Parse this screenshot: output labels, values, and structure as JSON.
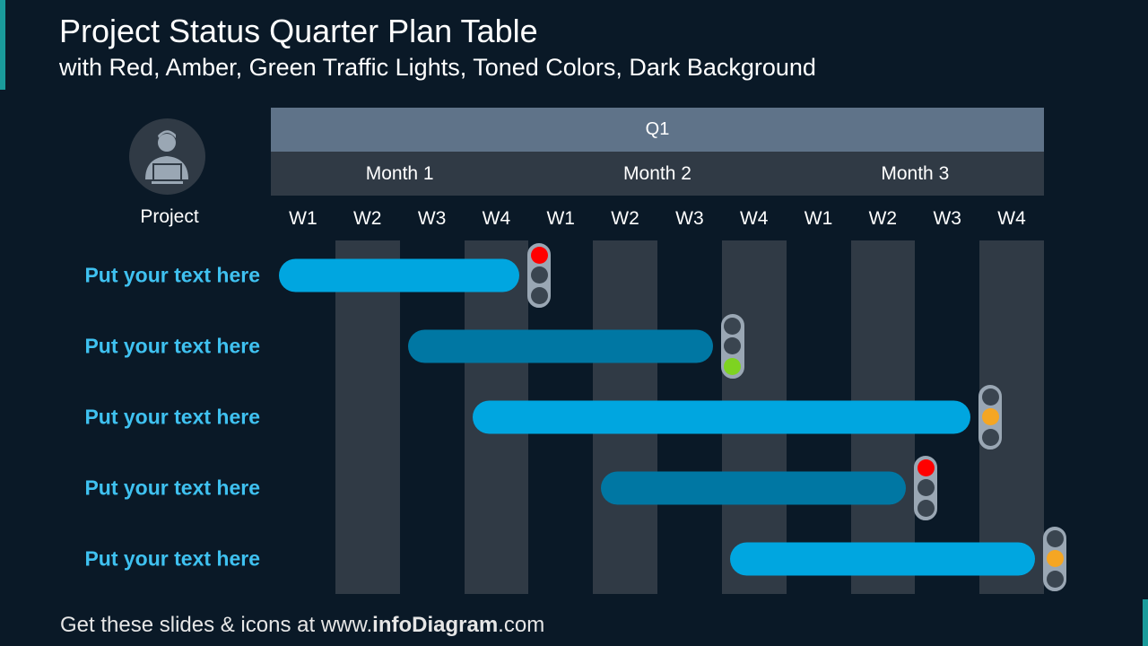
{
  "title": "Project Status Quarter Plan Table",
  "subtitle": "with Red, Amber, Green Traffic Lights, Toned Colors, Dark Background",
  "quarter": "Q1",
  "months": [
    "Month 1",
    "Month 2",
    "Month 3"
  ],
  "weeks": [
    "W1",
    "W2",
    "W3",
    "W4",
    "W1",
    "W2",
    "W3",
    "W4",
    "W1",
    "W2",
    "W3",
    "W4"
  ],
  "project_header": "Project",
  "footer": {
    "prefix": "Get these slides & icons at www.",
    "brand": "infoDiagram",
    "suffix": ".com"
  },
  "colors": {
    "bar_light": "#00a6e0",
    "bar_dark": "#0077a3",
    "red": "#ff0000",
    "amber": "#f5a623",
    "green": "#7ed321",
    "label": "#3fc1f0"
  },
  "chart_data": {
    "type": "gantt",
    "x_unit": "week of quarter",
    "tasks": [
      {
        "label": "Put your text here",
        "start_week": 1,
        "end_week": 4,
        "status": "red",
        "tone": "light"
      },
      {
        "label": "Put your text here",
        "start_week": 3,
        "end_week": 7,
        "status": "green",
        "tone": "dark"
      },
      {
        "label": "Put your text here",
        "start_week": 4,
        "end_week": 11,
        "status": "amber",
        "tone": "light"
      },
      {
        "label": "Put your text here",
        "start_week": 6,
        "end_week": 10,
        "status": "red",
        "tone": "dark"
      },
      {
        "label": "Put your text here",
        "start_week": 8,
        "end_week": 12,
        "status": "amber",
        "tone": "light"
      }
    ]
  }
}
